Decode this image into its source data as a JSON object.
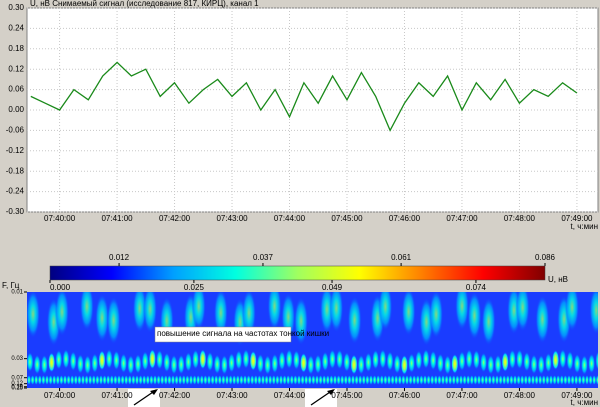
{
  "chart_data": [
    {
      "type": "line",
      "title": "U, нВ  Снимаемый сигнал (исследование 817, КИРЦ), канал 1",
      "x_label": "t, ч:мин",
      "x": [
        "07:39:30",
        "07:39:45",
        "07:40:00",
        "07:40:15",
        "07:40:30",
        "07:40:45",
        "07:41:00",
        "07:41:15",
        "07:41:30",
        "07:41:45",
        "07:42:00",
        "07:42:15",
        "07:42:30",
        "07:42:45",
        "07:43:00",
        "07:43:15",
        "07:43:30",
        "07:43:45",
        "07:44:00",
        "07:44:15",
        "07:44:30",
        "07:44:45",
        "07:45:00",
        "07:45:15",
        "07:45:30",
        "07:45:45",
        "07:46:00",
        "07:46:15",
        "07:46:30",
        "07:46:45",
        "07:47:00",
        "07:47:15",
        "07:47:30",
        "07:47:45",
        "07:48:00",
        "07:48:15",
        "07:48:30",
        "07:48:45",
        "07:49:00"
      ],
      "series": [
        {
          "color": "#1a8a1a",
          "values": [
            0.04,
            0.02,
            0.0,
            0.06,
            0.03,
            0.1,
            0.14,
            0.1,
            0.12,
            0.04,
            0.08,
            0.02,
            0.06,
            0.09,
            0.04,
            0.08,
            0.0,
            0.06,
            -0.02,
            0.08,
            0.02,
            0.1,
            0.03,
            0.11,
            0.04,
            -0.06,
            0.02,
            0.08,
            0.04,
            0.1,
            0.0,
            0.08,
            0.03,
            0.09,
            0.02,
            0.06,
            0.04,
            0.08,
            0.05
          ]
        }
      ],
      "xlim": [
        "07:39:26",
        "07:49:22"
      ],
      "xticks": [
        "07:40:00",
        "07:41:00",
        "07:42:00",
        "07:43:00",
        "07:44:00",
        "07:45:00",
        "07:46:00",
        "07:47:00",
        "07:48:00",
        "07:49:00"
      ],
      "ylim": [
        -0.3,
        0.3
      ],
      "yticks": [
        {
          "value": 0.3,
          "label": "0.30"
        },
        {
          "value": 0.24,
          "label": "0.24"
        },
        {
          "value": 0.18,
          "label": "0.18"
        },
        {
          "value": 0.12,
          "label": "0.12"
        },
        {
          "value": 0.06,
          "label": "0.06"
        },
        {
          "value": 0,
          "label": "0.00"
        },
        {
          "value": -0.06,
          "label": "-0.06"
        },
        {
          "value": -0.12,
          "label": "-0.12"
        },
        {
          "value": -0.18,
          "label": "-0.18"
        },
        {
          "value": -0.24,
          "label": "-0.24"
        },
        {
          "value": -0.3,
          "label": "-0.30"
        }
      ],
      "grid": true
    },
    {
      "type": "heatmap",
      "colorbar_label": "U, нВ",
      "colorbar_lim": [
        0,
        0.086
      ],
      "colorbar_ticks": [
        {
          "value": 0,
          "label": "0.000"
        },
        {
          "value": 0.012,
          "label": "0.012"
        },
        {
          "value": 0.025,
          "label": "0.025"
        },
        {
          "value": 0.037,
          "label": "0.037"
        },
        {
          "value": 0.049,
          "label": "0.049"
        },
        {
          "value": 0.061,
          "label": "0.061"
        },
        {
          "value": 0.074,
          "label": "0.074"
        },
        {
          "value": 0.086,
          "label": "0.086"
        }
      ],
      "colormap": [
        "#000080",
        "#0000ff",
        "#00a0ff",
        "#00ffe0",
        "#a0ff60",
        "#ffff00",
        "#ff8000",
        "#ff0000",
        "#800000"
      ],
      "y_label": "F, Гц",
      "yscale": "reciprocal",
      "ylim": [
        0.01,
        0.25
      ],
      "yticks": [
        0.01,
        0.03,
        0.07,
        0.12,
        0.19,
        0.25
      ],
      "x_label": "t, ч:мин",
      "xlim": [
        "07:39:26",
        "07:49:22"
      ],
      "xticks": [
        "07:40:00",
        "07:41:00",
        "07:42:00",
        "07:43:00",
        "07:44:00",
        "07:45:00",
        "07:46:00",
        "07:47:00",
        "07:48:00",
        "07:49:00"
      ],
      "annotation": "повышение сигнала на частотах тонкой кишки"
    }
  ]
}
